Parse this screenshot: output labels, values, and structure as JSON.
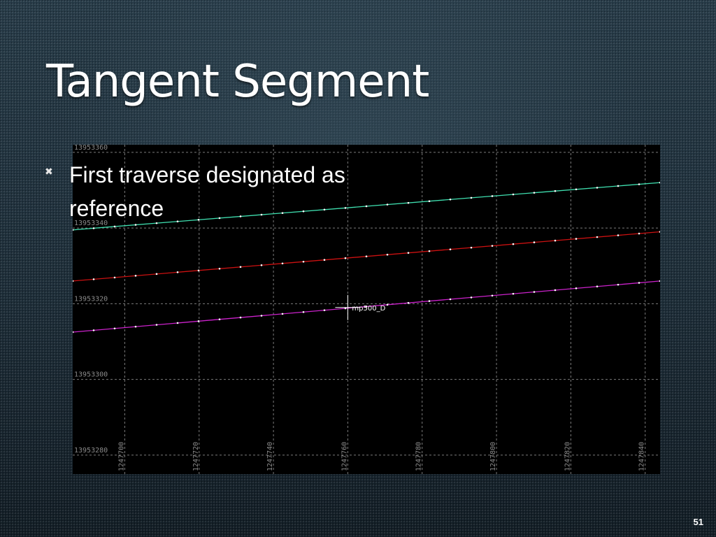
{
  "slide": {
    "title": "Tangent Segment",
    "bullet": "First traverse designated as reference",
    "page_number": "51"
  },
  "plot": {
    "x_ticks": [
      "1247700",
      "1247720",
      "1247740",
      "1247760",
      "1247780",
      "1247800",
      "1247820",
      "1247840"
    ],
    "y_ticks": [
      "13953360",
      "13953340",
      "13953320",
      "13953300",
      "13953280"
    ],
    "marker_label": "mp500_D",
    "marker_position": {
      "x": 1247760,
      "y": 13953319
    },
    "xlim": [
      1247686,
      1247844
    ],
    "ylim": [
      13953275,
      13953362
    ],
    "grid": true,
    "series": [
      {
        "color": "#3fe0b0",
        "x": [
          1247686,
          1247844
        ],
        "y": [
          13953339.5,
          13953352
        ]
      },
      {
        "color": "#cc1111",
        "x": [
          1247686,
          1247844
        ],
        "y": [
          13953326,
          13953339
        ]
      },
      {
        "color": "#cc22cc",
        "x": [
          1247686,
          1247844
        ],
        "y": [
          13953312.5,
          13953326
        ]
      }
    ]
  }
}
